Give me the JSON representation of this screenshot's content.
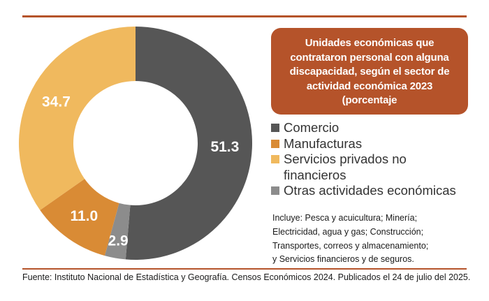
{
  "chart_data": {
    "type": "pie",
    "variant": "donut",
    "title": "Unidades económicas que contrataron personal con alguna discapacidad, según el sector de actividad económica 2023 (porcentaje",
    "categories": [
      "Comercio",
      "Manufacturas",
      "Servicios privados no financieros",
      "Otras actividades económicas"
    ],
    "values": [
      51.3,
      11.0,
      34.7,
      2.9
    ],
    "value_labels": [
      "51.3",
      "11.0",
      "34.7",
      "2.9"
    ],
    "colors": [
      "#565656",
      "#d98b35",
      "#f0b95e",
      "#8c8c8c"
    ],
    "slice_order": [
      0,
      3,
      1,
      2
    ],
    "legend_position": "right"
  },
  "title_lines": [
    "Unidades económicas que",
    "contrataron personal con alguna",
    "discapacidad, según el sector de",
    "actividad económica 2023",
    "(porcentaje"
  ],
  "legend": [
    {
      "lines": [
        "Comercio"
      ],
      "color": "#565656"
    },
    {
      "lines": [
        "Manufacturas"
      ],
      "color": "#d98b35"
    },
    {
      "lines": [
        "Servicios privados no",
        "financieros"
      ],
      "color": "#f0b95e"
    },
    {
      "lines": [
        "Otras actividades económicas"
      ],
      "color": "#8c8c8c"
    }
  ],
  "note_lines": [
    "Incluye: Pesca y acuicultura; Minería;",
    "Electricidad, agua y gas; Construcción;",
    "Transportes, correos y almacenamiento;",
    "y Servicios financieros y de seguros."
  ],
  "source": "Fuente: Instituto Nacional de Estadística y Geografía. Censos Económicos 2024. Publicados el 24 de julio del 2025."
}
